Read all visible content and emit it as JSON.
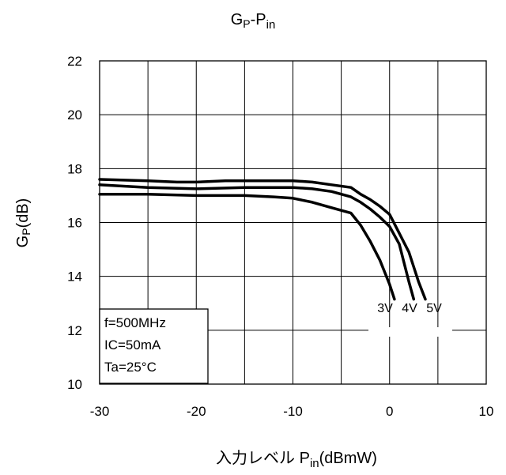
{
  "chart_data": {
    "type": "line",
    "title": "GP-Pin",
    "title_parts": {
      "g": "G",
      "p": "P",
      "dash": "-",
      "pin": "P",
      "pin_sub": "in"
    },
    "xlabel_parts": {
      "prefix": "入力レベル  P",
      "sub": "in",
      "suffix": "(dBmW)"
    },
    "ylabel_parts": {
      "g": "G",
      "p": "P",
      "suffix": "(dB)"
    },
    "xlim": [
      -30,
      10
    ],
    "ylim": [
      10,
      22
    ],
    "x_ticks": [
      "-30",
      "-20",
      "-10",
      "0",
      "10"
    ],
    "y_ticks": [
      "10",
      "12",
      "14",
      "16",
      "18",
      "20",
      "22"
    ],
    "grid": true,
    "series": [
      {
        "name": "3V",
        "x": [
          -30,
          -25,
          -20,
          -15,
          -12,
          -10,
          -8,
          -6,
          -4,
          -3,
          -2,
          -1,
          0,
          0.5
        ],
        "y": [
          17.05,
          17.05,
          17.0,
          17.0,
          16.95,
          16.9,
          16.75,
          16.55,
          16.35,
          15.9,
          15.3,
          14.6,
          13.7,
          13.15
        ]
      },
      {
        "name": "4V",
        "x": [
          -30,
          -25,
          -20,
          -15,
          -10,
          -8,
          -6,
          -4,
          -3,
          -2,
          -1,
          0,
          1,
          2,
          2.5
        ],
        "y": [
          17.4,
          17.3,
          17.25,
          17.3,
          17.3,
          17.25,
          17.15,
          16.95,
          16.75,
          16.5,
          16.2,
          15.85,
          15.2,
          13.8,
          13.15
        ]
      },
      {
        "name": "5V",
        "x": [
          -30,
          -25,
          -22,
          -20,
          -17,
          -15,
          -10,
          -8,
          -6,
          -4,
          -3,
          -2,
          -1,
          0,
          1,
          2,
          3,
          3.7
        ],
        "y": [
          17.6,
          17.55,
          17.5,
          17.5,
          17.55,
          17.55,
          17.55,
          17.5,
          17.4,
          17.3,
          17.05,
          16.85,
          16.6,
          16.3,
          15.6,
          14.9,
          13.8,
          13.15
        ]
      }
    ],
    "annotations": [
      "f=500MHz",
      "IC=50mA",
      "Ta=25°C"
    ]
  }
}
